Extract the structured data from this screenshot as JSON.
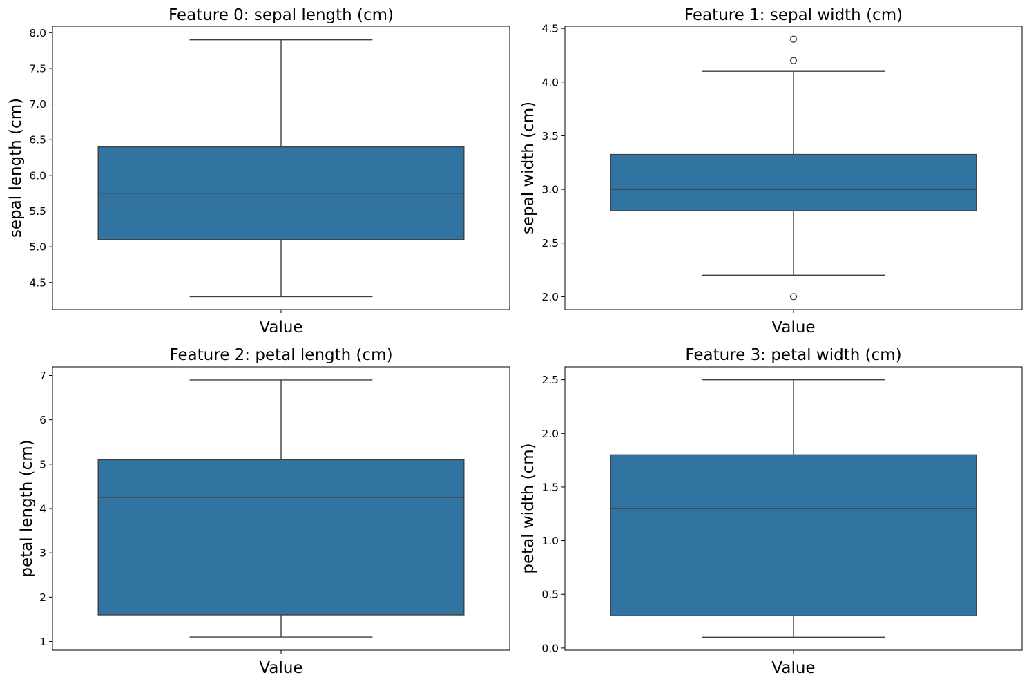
{
  "chart_data": [
    {
      "type": "box",
      "title": "Feature 0: sepal length (cm)",
      "xlabel": "Value",
      "ylabel": "sepal length (cm)",
      "ylim": [
        4.12,
        8.09
      ],
      "yticks": [
        4.5,
        5.0,
        5.5,
        6.0,
        6.5,
        7.0,
        7.5,
        8.0
      ],
      "ytick_labels": [
        "4.5",
        "5.0",
        "5.5",
        "6.0",
        "6.5",
        "7.0",
        "7.5",
        "8.0"
      ],
      "box": {
        "whisker_low": 4.3,
        "q1": 5.1,
        "median": 5.75,
        "q3": 6.4,
        "whisker_high": 7.9,
        "outliers": []
      },
      "color": "#3274a1",
      "grid": false
    },
    {
      "type": "box",
      "title": "Feature 1: sepal width (cm)",
      "xlabel": "Value",
      "ylabel": "sepal width (cm)",
      "ylim": [
        1.88,
        4.52
      ],
      "yticks": [
        2.0,
        2.5,
        3.0,
        3.5,
        4.0,
        4.5
      ],
      "ytick_labels": [
        "2.0",
        "2.5",
        "3.0",
        "3.5",
        "4.0",
        "4.5"
      ],
      "box": {
        "whisker_low": 2.2,
        "q1": 2.8,
        "median": 3.0,
        "q3": 3.325,
        "whisker_high": 4.1,
        "outliers": [
          2.0,
          4.2,
          4.4
        ]
      },
      "color": "#3274a1",
      "grid": false
    },
    {
      "type": "box",
      "title": "Feature 2: petal length (cm)",
      "xlabel": "Value",
      "ylabel": "petal length (cm)",
      "ylim": [
        0.805,
        7.195
      ],
      "yticks": [
        1,
        2,
        3,
        4,
        5,
        6,
        7
      ],
      "ytick_labels": [
        "1",
        "2",
        "3",
        "4",
        "5",
        "6",
        "7"
      ],
      "box": {
        "whisker_low": 1.1,
        "q1": 1.6,
        "median": 4.25,
        "q3": 5.1,
        "whisker_high": 6.9,
        "outliers": []
      },
      "color": "#3274a1",
      "grid": false
    },
    {
      "type": "box",
      "title": "Feature 3: petal width (cm)",
      "xlabel": "Value",
      "ylabel": "petal width (cm)",
      "ylim": [
        -0.02,
        2.62
      ],
      "yticks": [
        0.0,
        0.5,
        1.0,
        1.5,
        2.0,
        2.5
      ],
      "ytick_labels": [
        "0.0",
        "0.5",
        "1.0",
        "1.5",
        "2.0",
        "2.5"
      ],
      "box": {
        "whisker_low": 0.1,
        "q1": 0.3,
        "median": 1.3,
        "q3": 1.8,
        "whisker_high": 2.5,
        "outliers": []
      },
      "color": "#3274a1",
      "grid": false
    }
  ]
}
